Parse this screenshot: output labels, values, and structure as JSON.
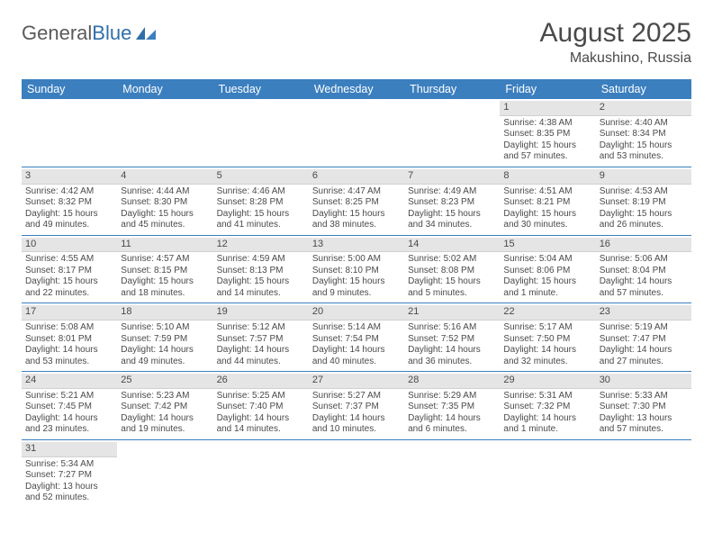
{
  "brand": {
    "part1": "General",
    "part2": "Blue"
  },
  "title": "August 2025",
  "location": "Makushino, Russia",
  "dayNames": [
    "Sunday",
    "Monday",
    "Tuesday",
    "Wednesday",
    "Thursday",
    "Friday",
    "Saturday"
  ],
  "colors": {
    "header_bg": "#3b7fbf",
    "row_divider": "#3b7fbf",
    "daynum_bg": "#e5e5e5",
    "text": "#4a4a4a",
    "logo_blue": "#2f6fa8"
  },
  "weeks": [
    [
      null,
      null,
      null,
      null,
      null,
      {
        "d": "1",
        "sr": "Sunrise: 4:38 AM",
        "ss": "Sunset: 8:35 PM",
        "dl1": "Daylight: 15 hours",
        "dl2": "and 57 minutes."
      },
      {
        "d": "2",
        "sr": "Sunrise: 4:40 AM",
        "ss": "Sunset: 8:34 PM",
        "dl1": "Daylight: 15 hours",
        "dl2": "and 53 minutes."
      }
    ],
    [
      {
        "d": "3",
        "sr": "Sunrise: 4:42 AM",
        "ss": "Sunset: 8:32 PM",
        "dl1": "Daylight: 15 hours",
        "dl2": "and 49 minutes."
      },
      {
        "d": "4",
        "sr": "Sunrise: 4:44 AM",
        "ss": "Sunset: 8:30 PM",
        "dl1": "Daylight: 15 hours",
        "dl2": "and 45 minutes."
      },
      {
        "d": "5",
        "sr": "Sunrise: 4:46 AM",
        "ss": "Sunset: 8:28 PM",
        "dl1": "Daylight: 15 hours",
        "dl2": "and 41 minutes."
      },
      {
        "d": "6",
        "sr": "Sunrise: 4:47 AM",
        "ss": "Sunset: 8:25 PM",
        "dl1": "Daylight: 15 hours",
        "dl2": "and 38 minutes."
      },
      {
        "d": "7",
        "sr": "Sunrise: 4:49 AM",
        "ss": "Sunset: 8:23 PM",
        "dl1": "Daylight: 15 hours",
        "dl2": "and 34 minutes."
      },
      {
        "d": "8",
        "sr": "Sunrise: 4:51 AM",
        "ss": "Sunset: 8:21 PM",
        "dl1": "Daylight: 15 hours",
        "dl2": "and 30 minutes."
      },
      {
        "d": "9",
        "sr": "Sunrise: 4:53 AM",
        "ss": "Sunset: 8:19 PM",
        "dl1": "Daylight: 15 hours",
        "dl2": "and 26 minutes."
      }
    ],
    [
      {
        "d": "10",
        "sr": "Sunrise: 4:55 AM",
        "ss": "Sunset: 8:17 PM",
        "dl1": "Daylight: 15 hours",
        "dl2": "and 22 minutes."
      },
      {
        "d": "11",
        "sr": "Sunrise: 4:57 AM",
        "ss": "Sunset: 8:15 PM",
        "dl1": "Daylight: 15 hours",
        "dl2": "and 18 minutes."
      },
      {
        "d": "12",
        "sr": "Sunrise: 4:59 AM",
        "ss": "Sunset: 8:13 PM",
        "dl1": "Daylight: 15 hours",
        "dl2": "and 14 minutes."
      },
      {
        "d": "13",
        "sr": "Sunrise: 5:00 AM",
        "ss": "Sunset: 8:10 PM",
        "dl1": "Daylight: 15 hours",
        "dl2": "and 9 minutes."
      },
      {
        "d": "14",
        "sr": "Sunrise: 5:02 AM",
        "ss": "Sunset: 8:08 PM",
        "dl1": "Daylight: 15 hours",
        "dl2": "and 5 minutes."
      },
      {
        "d": "15",
        "sr": "Sunrise: 5:04 AM",
        "ss": "Sunset: 8:06 PM",
        "dl1": "Daylight: 15 hours",
        "dl2": "and 1 minute."
      },
      {
        "d": "16",
        "sr": "Sunrise: 5:06 AM",
        "ss": "Sunset: 8:04 PM",
        "dl1": "Daylight: 14 hours",
        "dl2": "and 57 minutes."
      }
    ],
    [
      {
        "d": "17",
        "sr": "Sunrise: 5:08 AM",
        "ss": "Sunset: 8:01 PM",
        "dl1": "Daylight: 14 hours",
        "dl2": "and 53 minutes."
      },
      {
        "d": "18",
        "sr": "Sunrise: 5:10 AM",
        "ss": "Sunset: 7:59 PM",
        "dl1": "Daylight: 14 hours",
        "dl2": "and 49 minutes."
      },
      {
        "d": "19",
        "sr": "Sunrise: 5:12 AM",
        "ss": "Sunset: 7:57 PM",
        "dl1": "Daylight: 14 hours",
        "dl2": "and 44 minutes."
      },
      {
        "d": "20",
        "sr": "Sunrise: 5:14 AM",
        "ss": "Sunset: 7:54 PM",
        "dl1": "Daylight: 14 hours",
        "dl2": "and 40 minutes."
      },
      {
        "d": "21",
        "sr": "Sunrise: 5:16 AM",
        "ss": "Sunset: 7:52 PM",
        "dl1": "Daylight: 14 hours",
        "dl2": "and 36 minutes."
      },
      {
        "d": "22",
        "sr": "Sunrise: 5:17 AM",
        "ss": "Sunset: 7:50 PM",
        "dl1": "Daylight: 14 hours",
        "dl2": "and 32 minutes."
      },
      {
        "d": "23",
        "sr": "Sunrise: 5:19 AM",
        "ss": "Sunset: 7:47 PM",
        "dl1": "Daylight: 14 hours",
        "dl2": "and 27 minutes."
      }
    ],
    [
      {
        "d": "24",
        "sr": "Sunrise: 5:21 AM",
        "ss": "Sunset: 7:45 PM",
        "dl1": "Daylight: 14 hours",
        "dl2": "and 23 minutes."
      },
      {
        "d": "25",
        "sr": "Sunrise: 5:23 AM",
        "ss": "Sunset: 7:42 PM",
        "dl1": "Daylight: 14 hours",
        "dl2": "and 19 minutes."
      },
      {
        "d": "26",
        "sr": "Sunrise: 5:25 AM",
        "ss": "Sunset: 7:40 PM",
        "dl1": "Daylight: 14 hours",
        "dl2": "and 14 minutes."
      },
      {
        "d": "27",
        "sr": "Sunrise: 5:27 AM",
        "ss": "Sunset: 7:37 PM",
        "dl1": "Daylight: 14 hours",
        "dl2": "and 10 minutes."
      },
      {
        "d": "28",
        "sr": "Sunrise: 5:29 AM",
        "ss": "Sunset: 7:35 PM",
        "dl1": "Daylight: 14 hours",
        "dl2": "and 6 minutes."
      },
      {
        "d": "29",
        "sr": "Sunrise: 5:31 AM",
        "ss": "Sunset: 7:32 PM",
        "dl1": "Daylight: 14 hours",
        "dl2": "and 1 minute."
      },
      {
        "d": "30",
        "sr": "Sunrise: 5:33 AM",
        "ss": "Sunset: 7:30 PM",
        "dl1": "Daylight: 13 hours",
        "dl2": "and 57 minutes."
      }
    ],
    [
      {
        "d": "31",
        "sr": "Sunrise: 5:34 AM",
        "ss": "Sunset: 7:27 PM",
        "dl1": "Daylight: 13 hours",
        "dl2": "and 52 minutes."
      },
      null,
      null,
      null,
      null,
      null,
      null
    ]
  ]
}
